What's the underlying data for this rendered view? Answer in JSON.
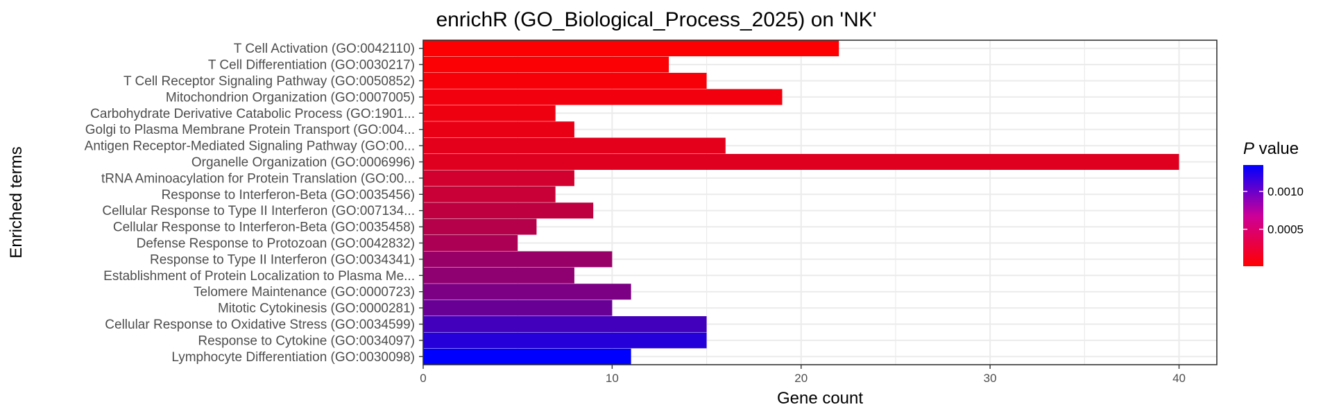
{
  "chart_data": {
    "type": "bar",
    "orientation": "horizontal",
    "title": "enrichR (GO_Biological_Process_2025) on 'NK'",
    "xlabel": "Gene count",
    "ylabel": "Enriched terms",
    "xlim": [
      0,
      42
    ],
    "x_ticks": [
      0,
      10,
      20,
      30,
      40
    ],
    "grid": true,
    "legend": {
      "title_italic": "P",
      "title_rest": " value",
      "placement": "right",
      "ticks": [
        0.0005,
        0.001
      ],
      "tick_labels": [
        "0.0005",
        "0.0010"
      ],
      "range": [
        1e-05,
        0.00135
      ],
      "low_color": "#ff0000",
      "high_color": "#0000ff"
    },
    "categories": [
      "T Cell Activation (GO:0042110)",
      "T Cell Differentiation (GO:0030217)",
      "T Cell Receptor Signaling Pathway (GO:0050852)",
      "Mitochondrion Organization (GO:0007005)",
      "Carbohydrate Derivative Catabolic Process (GO:1901...",
      "Golgi to Plasma Membrane Protein Transport (GO:004...",
      "Antigen Receptor-Mediated Signaling Pathway (GO:00...",
      "Organelle Organization (GO:0006996)",
      "tRNA Aminoacylation for Protein Translation (GO:00...",
      "Response to Interferon-Beta (GO:0035456)",
      "Cellular Response to Type II Interferon (GO:007134...",
      "Cellular Response to Interferon-Beta (GO:0035458)",
      "Defense Response to Protozoan (GO:0042832)",
      "Response to Type II Interferon (GO:0034341)",
      "Establishment of Protein Localization to Plasma Me...",
      "Telomere Maintenance (GO:0000723)",
      "Mitotic Cytokinesis (GO:0000281)",
      "Cellular Response to Oxidative Stress (GO:0034599)",
      "Response to Cytokine (GO:0034097)",
      "Lymphocyte Differentiation (GO:0030098)"
    ],
    "values": [
      22,
      13,
      15,
      19,
      7,
      8,
      16,
      40,
      8,
      7,
      9,
      6,
      5,
      10,
      8,
      11,
      10,
      15,
      15,
      11
    ],
    "p_values": [
      2e-05,
      3e-05,
      5e-05,
      8e-05,
      0.0001,
      0.00012,
      0.00015,
      0.00018,
      0.00025,
      0.0003,
      0.00035,
      0.0004,
      0.00045,
      0.00055,
      0.0006,
      0.0007,
      0.0008,
      0.001,
      0.00115,
      0.00135
    ]
  }
}
